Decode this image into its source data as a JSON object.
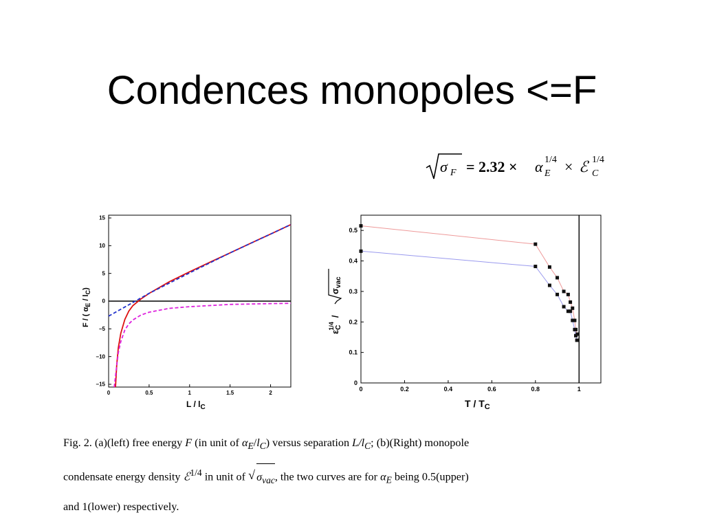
{
  "slide": {
    "title": "Condences monopoles <=F"
  },
  "formula": {
    "radicand": "σ",
    "radicand_sub": "F",
    "rhs_coeff": "= 2.32 ×",
    "alpha": "α",
    "alpha_sub": "E",
    "power": "1/4",
    "times": "×",
    "eps": "ℰ",
    "eps_sub": "C"
  },
  "caption": {
    "line1": {
      "a": "Fig. 2. (a)(left) free energy",
      "b": "F",
      "c": "(in unit of",
      "d": "α",
      "e": "E",
      "f": "/",
      "g": "l",
      "h": "C",
      "i": ") versus separation",
      "j": "L/l",
      "k": "C",
      "l": "; (b)(Right) monopole"
    },
    "line2": {
      "a": "condensate energy density",
      "b": "ℰ",
      "c": "1/4",
      "d": "in unit of",
      "e": "σ",
      "f": "vac",
      "g": ", the two curves are for",
      "h": "α",
      "i": "E",
      "j": "being 0.5(upper)"
    },
    "line3": "and 1(lower) respectively."
  },
  "chart_data": [
    {
      "type": "line",
      "title": "",
      "xlabel": "L / l",
      "xlabel_sub": "C",
      "ylabel": "F / ( α",
      "ylabel_sub1": "E",
      "ylabel_mid": " / l",
      "ylabel_sub2": "C",
      "ylabel_end": ")",
      "xlim": [
        0,
        2.25
      ],
      "ylim": [
        -15.5,
        15.5
      ],
      "x_ticks": [
        0,
        0.5,
        1,
        1.5,
        2
      ],
      "x_tick_labels": [
        "0",
        "0.5",
        "1",
        "1.5",
        "2"
      ],
      "y_ticks": [
        -15,
        -10,
        -5,
        0,
        5,
        10,
        15
      ],
      "y_tick_labels": [
        "−15",
        "−10",
        "−5",
        "0",
        "5",
        "10",
        "15"
      ],
      "grid": false,
      "reference_line": {
        "y": 0,
        "color": "#000000"
      },
      "series": [
        {
          "color": "#dd1111",
          "style": "solid",
          "x": [
            0.085,
            0.1,
            0.12,
            0.15,
            0.2,
            0.25,
            0.3,
            0.4,
            0.5,
            0.75,
            1.0,
            1.25,
            1.5,
            1.75,
            2.0,
            2.25
          ],
          "y": [
            -15.5,
            -11.5,
            -8.4,
            -5.8,
            -3.3,
            -1.8,
            -0.8,
            0.4,
            1.4,
            3.5,
            5.3,
            7.0,
            8.7,
            10.4,
            12.1,
            13.8
          ]
        },
        {
          "color": "#2233cc",
          "style": "dashed",
          "x": [
            0,
            0.5,
            1.0,
            1.5,
            2.0,
            2.25
          ],
          "y": [
            -2.7,
            1.4,
            5.1,
            8.7,
            12.1,
            13.8
          ]
        },
        {
          "color": "#dd22dd",
          "style": "dashed",
          "x": [
            0.07,
            0.085,
            0.1,
            0.12,
            0.15,
            0.2,
            0.25,
            0.3,
            0.4,
            0.5,
            0.75,
            1.0,
            1.5,
            2.0,
            2.25
          ],
          "y": [
            -15.5,
            -13.5,
            -11.6,
            -9.3,
            -7.3,
            -5.2,
            -4.1,
            -3.4,
            -2.5,
            -2.0,
            -1.3,
            -1.0,
            -0.6,
            -0.45,
            -0.4
          ]
        }
      ]
    },
    {
      "type": "line",
      "title": "",
      "xlabel": "T / T",
      "xlabel_sub": "C",
      "ylabel_eps": "ε",
      "ylabel_sub": "C",
      "ylabel_sup": "1/4",
      "ylabel_slash": "/",
      "ylabel_root": "σ",
      "ylabel_root_sub": "vac",
      "xlim": [
        0,
        1.1
      ],
      "ylim": [
        0,
        0.55
      ],
      "x_ticks": [
        0,
        0.2,
        0.4,
        0.6,
        0.8,
        1
      ],
      "x_tick_labels": [
        "0",
        "0.2",
        "0.4",
        "0.6",
        "0.8",
        "1"
      ],
      "y_ticks": [
        0,
        0.1,
        0.2,
        0.3,
        0.4,
        0.5
      ],
      "y_tick_labels": [
        "0",
        "0.1",
        "0.2",
        "0.3",
        "0.4",
        "0.5"
      ],
      "grid": false,
      "reference_line": {
        "x": 1,
        "color": "#000000"
      },
      "series": [
        {
          "color": "#ee9999",
          "marker": "square",
          "x": [
            0,
            0.8,
            0.865,
            0.9,
            0.93,
            0.95,
            0.96,
            0.97,
            0.98,
            0.985,
            0.99
          ],
          "y": [
            0.515,
            0.455,
            0.38,
            0.345,
            0.3,
            0.29,
            0.265,
            0.245,
            0.205,
            0.175,
            0.16
          ]
        },
        {
          "color": "#9999ee",
          "marker": "square",
          "x": [
            0,
            0.8,
            0.865,
            0.9,
            0.93,
            0.95,
            0.96,
            0.97,
            0.98,
            0.985,
            0.99
          ],
          "y": [
            0.432,
            0.382,
            0.32,
            0.29,
            0.25,
            0.235,
            0.235,
            0.205,
            0.175,
            0.155,
            0.14
          ]
        }
      ]
    }
  ]
}
